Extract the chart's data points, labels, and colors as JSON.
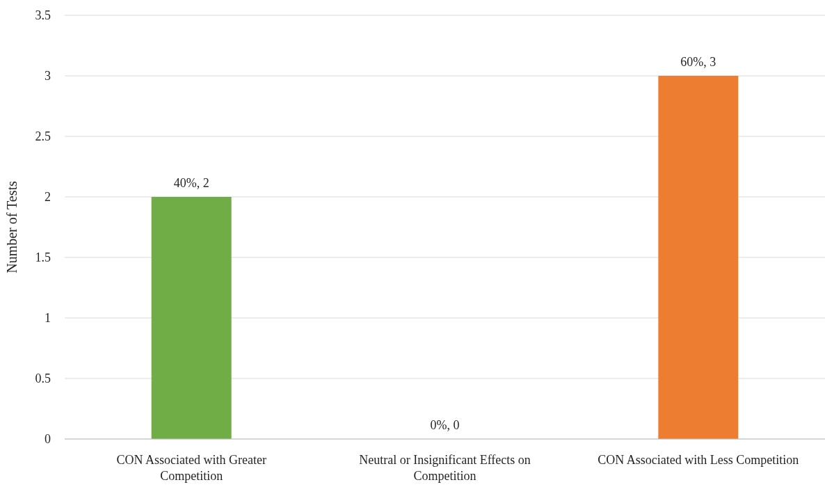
{
  "chart_data": {
    "type": "bar",
    "ylabel": "Number of Tests",
    "categories": [
      "CON Associated with Greater Competition",
      "Neutral or Insignificant Effects on Competition",
      "CON Associated with Less Competition"
    ],
    "values": [
      2,
      0,
      3
    ],
    "colors": [
      "#70ad47",
      "#a5a5a5",
      "#ed7d31"
    ],
    "value_labels": [
      "40%, 2",
      "0%, 0",
      "60%, 3"
    ],
    "ylim": [
      0,
      3.5
    ],
    "yticks": [
      0,
      0.5,
      1,
      1.5,
      2,
      2.5,
      3,
      3.5
    ],
    "grid": "y"
  }
}
